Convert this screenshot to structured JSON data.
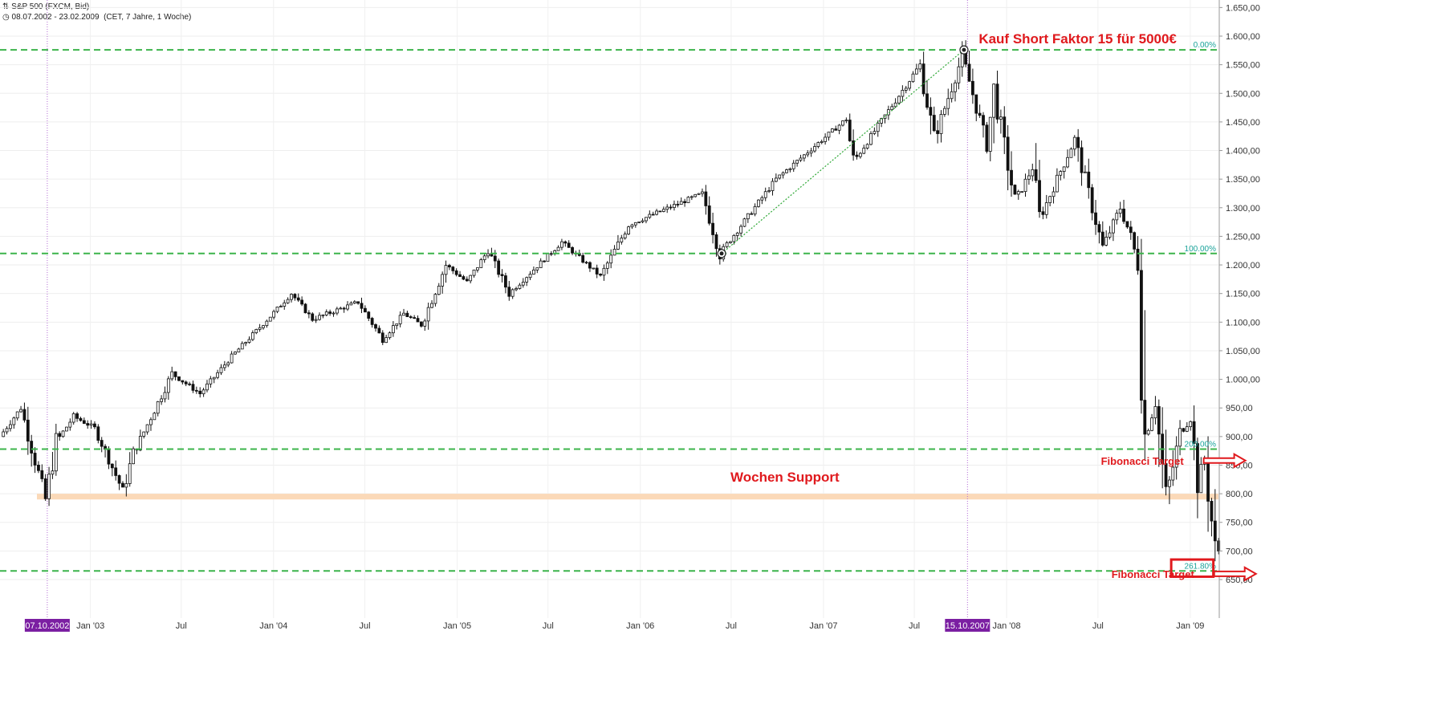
{
  "header": {
    "instrument": "S&P 500 (FXCM, Bid)",
    "range": "08.07.2002 - 23.02.2009",
    "info": "(CET, 7 Jahre, 1 Woche)"
  },
  "colors": {
    "fib_line": "#3cb44b",
    "fib_label": "#1aa39a",
    "support_band": "#fbd9b8",
    "annotation": "#e0191d",
    "date_marker": "#7b1fa2",
    "candle": "#111111"
  },
  "chart_data": {
    "type": "candlestick",
    "timeframe": "weekly",
    "x_range": [
      "2002-07-08",
      "2009-02-23"
    ],
    "ylim": [
      630,
      1660
    ],
    "y_ticks": [
      650,
      700,
      750,
      800,
      850,
      900,
      950,
      1000,
      1050,
      1100,
      1150,
      1200,
      1250,
      1300,
      1350,
      1400,
      1450,
      1500,
      1550,
      1600,
      1650
    ],
    "y_tick_labels": [
      "650,00",
      "700,00",
      "750,00",
      "800,00",
      "850,00",
      "900,00",
      "950,00",
      "1.000,00",
      "1.050,00",
      "1.100,00",
      "1.150,00",
      "1.200,00",
      "1.250,00",
      "1.300,00",
      "1.350,00",
      "1.400,00",
      "1.450,00",
      "1.500,00",
      "1.550,00",
      "1.600,00",
      "1.650,00"
    ],
    "x_ticks": [
      {
        "date": "2003-01-01",
        "label": "Jan '03"
      },
      {
        "date": "2003-07-01",
        "label": "Jul"
      },
      {
        "date": "2004-01-01",
        "label": "Jan '04"
      },
      {
        "date": "2004-07-01",
        "label": "Jul"
      },
      {
        "date": "2005-01-01",
        "label": "Jan '05"
      },
      {
        "date": "2005-07-01",
        "label": "Jul"
      },
      {
        "date": "2006-01-01",
        "label": "Jan '06"
      },
      {
        "date": "2006-07-01",
        "label": "Jul"
      },
      {
        "date": "2007-01-01",
        "label": "Jan '07"
      },
      {
        "date": "2007-07-01",
        "label": "Jul"
      },
      {
        "date": "2008-01-01",
        "label": "Jan '08"
      },
      {
        "date": "2008-07-01",
        "label": "Jul"
      },
      {
        "date": "2009-01-01",
        "label": "Jan '09"
      }
    ],
    "price_path": [
      [
        "2002-07-08",
        900
      ],
      [
        "2002-08-19",
        950
      ],
      [
        "2002-10-07",
        790
      ],
      [
        "2002-10-28",
        890
      ],
      [
        "2002-12-02",
        935
      ],
      [
        "2003-01-13",
        915
      ],
      [
        "2003-03-10",
        805
      ],
      [
        "2003-03-31",
        870
      ],
      [
        "2003-06-16",
        1010
      ],
      [
        "2003-08-11",
        975
      ],
      [
        "2003-10-13",
        1040
      ],
      [
        "2003-12-29",
        1110
      ],
      [
        "2004-02-09",
        1150
      ],
      [
        "2004-03-22",
        1105
      ],
      [
        "2004-06-21",
        1135
      ],
      [
        "2004-08-09",
        1070
      ],
      [
        "2004-09-20",
        1115
      ],
      [
        "2004-10-25",
        1095
      ],
      [
        "2004-12-13",
        1200
      ],
      [
        "2005-01-24",
        1170
      ],
      [
        "2005-03-07",
        1225
      ],
      [
        "2005-04-18",
        1150
      ],
      [
        "2005-08-01",
        1240
      ],
      [
        "2005-10-17",
        1180
      ],
      [
        "2005-12-12",
        1270
      ],
      [
        "2006-05-08",
        1325
      ],
      [
        "2006-06-12",
        1220
      ],
      [
        "2006-10-02",
        1350
      ],
      [
        "2007-02-19",
        1455
      ],
      [
        "2007-03-05",
        1380
      ],
      [
        "2007-07-16",
        1550
      ],
      [
        "2007-08-13",
        1420
      ],
      [
        "2007-10-08",
        1565
      ],
      [
        "2007-11-26",
        1410
      ],
      [
        "2007-12-10",
        1505
      ],
      [
        "2008-01-21",
        1310
      ],
      [
        "2008-02-25",
        1370
      ],
      [
        "2008-03-10",
        1280
      ],
      [
        "2008-05-19",
        1420
      ],
      [
        "2008-07-14",
        1230
      ],
      [
        "2008-08-18",
        1300
      ],
      [
        "2008-09-08",
        1250
      ],
      [
        "2008-09-22",
        1200
      ],
      [
        "2008-10-06",
        900
      ],
      [
        "2008-10-27",
        960
      ],
      [
        "2008-11-17",
        790
      ],
      [
        "2008-12-15",
        905
      ],
      [
        "2009-01-05",
        930
      ],
      [
        "2009-01-19",
        825
      ],
      [
        "2009-02-02",
        860
      ],
      [
        "2009-02-23",
        700
      ]
    ],
    "fib_levels": [
      {
        "value": 1576,
        "label": "0.00%"
      },
      {
        "value": 1220,
        "label": "100.00%"
      },
      {
        "value": 878,
        "label": "200.00%"
      },
      {
        "value": 665,
        "label": "261.80%"
      }
    ],
    "support_band": {
      "from": 790,
      "to": 800,
      "label": "Wochen Support"
    },
    "trend_line": {
      "from": {
        "date": "2006-06-12",
        "value": 1220
      },
      "to": {
        "date": "2007-10-08",
        "value": 1576
      }
    },
    "date_markers": [
      {
        "date": "2002-10-07",
        "label": "07.10.2002"
      },
      {
        "date": "2007-10-15",
        "label": "15.10.2007"
      }
    ],
    "annotations": [
      {
        "text": "Kauf Short Faktor 15 für 5000€",
        "date": "2007-10-15",
        "value": 1590
      },
      {
        "text": "Fibonacci Target",
        "date": "2008-07-07",
        "value": 858,
        "arrow": true
      },
      {
        "text": "Fibonacci Target",
        "date": "2008-07-28",
        "value": 660,
        "arrow": true
      }
    ],
    "target_box": {
      "from_date": "2008-11-24",
      "to_date": "2009-02-16",
      "low": 655,
      "high": 685
    }
  }
}
